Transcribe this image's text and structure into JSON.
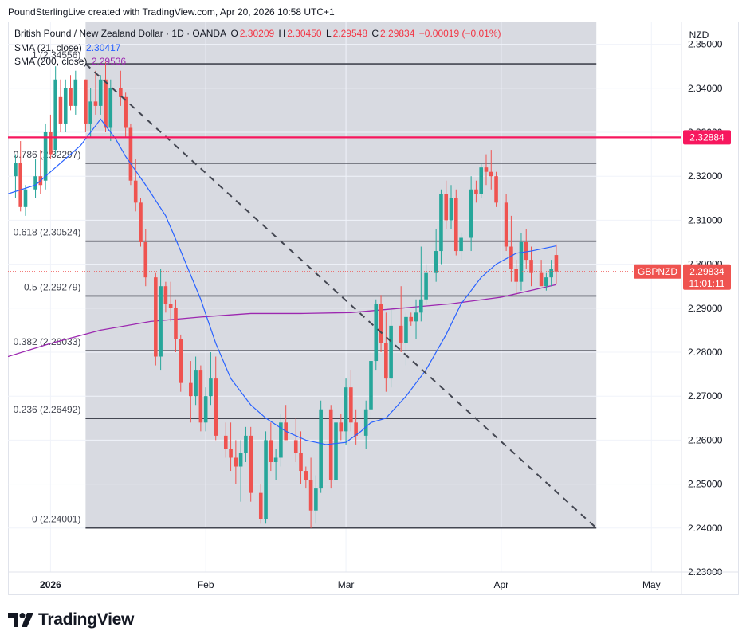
{
  "header": {
    "text": "PoundSterlingLive created with TradingView.com, Apr 20, 2026 10:58 UTC+1"
  },
  "legend": {
    "symbol": "British Pound / New Zealand Dollar · 1D · OANDA",
    "o_label": "O",
    "o_value": "2.30209",
    "h_label": "H",
    "h_value": "2.30450",
    "l_label": "L",
    "l_value": "2.29548",
    "c_label": "C",
    "c_value": "2.29834",
    "change": "−0.00019 (−0.01%)",
    "sma21_label": "SMA (21, close)",
    "sma21_value": "2.30417",
    "sma200_label": "SMA (200, close)",
    "sma200_value": "2.29536"
  },
  "currency_button": "NZD",
  "price_tag": {
    "symbol": "GBPNZD",
    "price": "2.29834",
    "countdown": "11:01:11"
  },
  "level_tag": "2.32884",
  "brand": "TradingView",
  "colors": {
    "up": "#26a69a",
    "down": "#ef5350",
    "sma21": "#2962ff",
    "sma200": "#9c27b0",
    "level": "#f7175e"
  },
  "chart_data": {
    "type": "candlestick",
    "symbol": "GBPNZD",
    "timeframe": "1D",
    "ylim": [
      2.23,
      2.355
    ],
    "y_ticks": [
      "2.23000",
      "2.24000",
      "2.25000",
      "2.26000",
      "2.27000",
      "2.28000",
      "2.29000",
      "2.30000",
      "2.31000",
      "2.32000",
      "2.33000",
      "2.34000",
      "2.35000"
    ],
    "x_ticks": [
      {
        "label": "2026",
        "day": 0,
        "bold": true
      },
      {
        "label": "Feb",
        "day": 31
      },
      {
        "label": "Mar",
        "day": 59
      },
      {
        "label": "Apr",
        "day": 90
      },
      {
        "label": "May",
        "day": 120
      }
    ],
    "x_range_days": [
      -8.5,
      126
    ],
    "candles": [
      [
        -7,
        2.32,
        2.325,
        2.315,
        2.323
      ],
      [
        -6,
        2.323,
        2.328,
        2.312,
        2.313
      ],
      [
        -5,
        2.313,
        2.318,
        2.311,
        2.317
      ],
      [
        -3,
        2.317,
        2.324,
        2.315,
        2.32
      ],
      [
        -2,
        2.32,
        2.326,
        2.316,
        2.318
      ],
      [
        -1,
        2.319,
        2.332,
        2.317,
        2.33
      ],
      [
        0,
        2.33,
        2.334,
        2.324,
        2.325
      ],
      [
        1,
        2.326,
        2.345,
        2.325,
        2.342
      ],
      [
        2,
        2.338,
        2.342,
        2.33,
        2.332
      ],
      [
        3,
        2.332,
        2.342,
        2.33,
        2.34
      ],
      [
        4,
        2.34,
        2.343,
        2.335,
        2.336
      ],
      [
        5,
        2.336,
        2.344,
        2.334,
        2.342
      ],
      [
        7,
        2.342,
        2.342,
        2.33,
        2.332
      ],
      [
        8,
        2.332,
        2.34,
        2.329,
        2.337
      ],
      [
        9,
        2.337,
        2.344,
        2.334,
        2.336
      ],
      [
        10,
        2.336,
        2.343,
        2.334,
        2.342
      ],
      [
        11,
        2.342,
        2.346,
        2.33,
        2.331
      ],
      [
        12,
        2.331,
        2.342,
        2.328,
        2.34
      ],
      [
        14,
        2.34,
        2.344,
        2.336,
        2.338
      ],
      [
        15,
        2.338,
        2.339,
        2.329,
        2.331
      ],
      [
        16,
        2.331,
        2.332,
        2.318,
        2.319
      ],
      [
        17,
        2.319,
        2.324,
        2.312,
        2.314
      ],
      [
        18,
        2.314,
        2.315,
        2.304,
        2.305
      ],
      [
        19,
        2.305,
        2.308,
        2.295,
        2.297
      ],
      [
        21,
        2.297,
        2.298,
        2.277,
        2.279
      ],
      [
        22,
        2.279,
        2.299,
        2.276,
        2.295
      ],
      [
        23,
        2.295,
        2.296,
        2.289,
        2.291
      ],
      [
        24,
        2.291,
        2.296,
        2.287,
        2.29
      ],
      [
        25,
        2.29,
        2.292,
        2.28,
        2.283
      ],
      [
        26,
        2.283,
        2.284,
        2.271,
        2.273
      ],
      [
        28,
        2.273,
        2.278,
        2.264,
        2.27
      ],
      [
        29,
        2.27,
        2.279,
        2.268,
        2.276
      ],
      [
        30,
        2.276,
        2.277,
        2.262,
        2.264
      ],
      [
        31,
        2.264,
        2.272,
        2.262,
        2.27
      ],
      [
        32,
        2.27,
        2.28,
        2.268,
        2.274
      ],
      [
        33,
        2.274,
        2.279,
        2.26,
        2.261
      ],
      [
        35,
        2.261,
        2.264,
        2.256,
        2.258
      ],
      [
        36,
        2.258,
        2.264,
        2.253,
        2.256
      ],
      [
        37,
        2.256,
        2.26,
        2.25,
        2.254
      ],
      [
        38,
        2.254,
        2.26,
        2.246,
        2.257
      ],
      [
        39,
        2.257,
        2.263,
        2.255,
        2.261
      ],
      [
        40,
        2.261,
        2.263,
        2.246,
        2.248
      ],
      [
        42,
        2.248,
        2.25,
        2.241,
        2.242
      ],
      [
        43,
        2.242,
        2.262,
        2.241,
        2.26
      ],
      [
        44,
        2.26,
        2.264,
        2.253,
        2.255
      ],
      [
        45,
        2.255,
        2.258,
        2.251,
        2.256
      ],
      [
        46,
        2.256,
        2.266,
        2.254,
        2.264
      ],
      [
        47,
        2.264,
        2.268,
        2.26,
        2.26
      ],
      [
        49,
        2.26,
        2.265,
        2.255,
        2.257
      ],
      [
        50,
        2.257,
        2.262,
        2.25,
        2.253
      ],
      [
        51,
        2.253,
        2.254,
        2.249,
        2.251
      ],
      [
        52,
        2.251,
        2.256,
        2.24,
        2.244
      ],
      [
        53,
        2.244,
        2.252,
        2.241,
        2.249
      ],
      [
        54,
        2.249,
        2.269,
        2.248,
        2.267
      ],
      [
        56,
        2.267,
        2.268,
        2.249,
        2.251
      ],
      [
        57,
        2.251,
        2.265,
        2.249,
        2.264
      ],
      [
        58,
        2.264,
        2.266,
        2.26,
        2.262
      ],
      [
        59,
        2.262,
        2.274,
        2.259,
        2.272
      ],
      [
        60,
        2.272,
        2.276,
        2.262,
        2.264
      ],
      [
        61,
        2.264,
        2.267,
        2.259,
        2.261
      ],
      [
        63,
        2.261,
        2.269,
        2.258,
        2.267
      ],
      [
        64,
        2.267,
        2.28,
        2.265,
        2.278
      ],
      [
        65,
        2.278,
        2.292,
        2.276,
        2.291
      ],
      [
        66,
        2.291,
        2.293,
        2.28,
        2.282
      ],
      [
        67,
        2.282,
        2.289,
        2.271,
        2.274
      ],
      [
        68,
        2.274,
        2.29,
        2.272,
        2.286
      ],
      [
        70,
        2.286,
        2.295,
        2.28,
        2.282
      ],
      [
        71,
        2.282,
        2.289,
        2.277,
        2.288
      ],
      [
        72,
        2.288,
        2.289,
        2.286,
        2.287
      ],
      [
        73,
        2.287,
        2.292,
        2.283,
        2.289
      ],
      [
        74,
        2.289,
        2.304,
        2.287,
        2.292
      ],
      [
        75,
        2.292,
        2.3,
        2.291,
        2.298
      ],
      [
        77,
        2.298,
        2.308,
        2.296,
        2.303
      ],
      [
        78,
        2.303,
        2.317,
        2.3,
        2.316
      ],
      [
        79,
        2.316,
        2.319,
        2.308,
        2.31
      ],
      [
        80,
        2.31,
        2.318,
        2.308,
        2.315
      ],
      [
        81,
        2.315,
        2.317,
        2.302,
        2.303
      ],
      [
        82,
        2.303,
        2.307,
        2.301,
        2.306
      ],
      [
        84,
        2.306,
        2.32,
        2.303,
        2.317
      ],
      [
        85,
        2.317,
        2.319,
        2.314,
        2.316
      ],
      [
        86,
        2.316,
        2.323,
        2.315,
        2.322
      ],
      [
        87,
        2.322,
        2.325,
        2.318,
        2.321
      ],
      [
        88,
        2.321,
        2.326,
        2.317,
        2.32
      ],
      [
        89,
        2.32,
        2.321,
        2.313,
        2.314
      ],
      [
        91,
        2.314,
        2.316,
        2.303,
        2.304
      ],
      [
        92,
        2.304,
        2.311,
        2.296,
        2.299
      ],
      [
        93,
        2.299,
        2.301,
        2.293,
        2.296
      ],
      [
        94,
        2.296,
        2.307,
        2.294,
        2.305
      ],
      [
        95,
        2.305,
        2.308,
        2.299,
        2.301
      ],
      [
        96,
        2.301,
        2.304,
        2.295,
        2.298
      ],
      [
        98,
        2.298,
        2.301,
        2.296,
        2.295
      ],
      [
        99,
        2.295,
        2.298,
        2.294,
        2.297
      ],
      [
        100,
        2.297,
        2.301,
        2.295,
        2.299
      ],
      [
        101,
        2.30209,
        2.3045,
        2.29548,
        2.29834
      ]
    ],
    "sma21": [
      [
        -8.5,
        2.316
      ],
      [
        -3,
        2.318
      ],
      [
        0,
        2.321
      ],
      [
        6,
        2.327
      ],
      [
        10,
        2.333
      ],
      [
        13,
        2.3285
      ],
      [
        15,
        2.3245
      ],
      [
        19,
        2.318
      ],
      [
        23,
        2.311
      ],
      [
        26,
        2.303
      ],
      [
        30,
        2.292
      ],
      [
        33,
        2.282
      ],
      [
        36,
        2.274
      ],
      [
        40,
        2.268
      ],
      [
        43,
        2.265
      ],
      [
        47,
        2.262
      ],
      [
        51,
        2.26
      ],
      [
        55,
        2.259
      ],
      [
        59,
        2.2595
      ],
      [
        62,
        2.262
      ],
      [
        64,
        2.264
      ],
      [
        67,
        2.265
      ],
      [
        71,
        2.27
      ],
      [
        75,
        2.276
      ],
      [
        79,
        2.284
      ],
      [
        82,
        2.291
      ],
      [
        86,
        2.297
      ],
      [
        89,
        2.3
      ],
      [
        93,
        2.3025
      ],
      [
        96,
        2.303
      ],
      [
        101,
        2.30417
      ]
    ],
    "sma200": [
      [
        -8.5,
        2.279
      ],
      [
        0,
        2.282
      ],
      [
        10,
        2.285
      ],
      [
        20,
        2.287
      ],
      [
        30,
        2.288
      ],
      [
        40,
        2.2888
      ],
      [
        50,
        2.2888
      ],
      [
        60,
        2.289
      ],
      [
        70,
        2.29
      ],
      [
        80,
        2.291
      ],
      [
        90,
        2.2925
      ],
      [
        95,
        2.2938
      ],
      [
        101,
        2.29536
      ]
    ],
    "fib_levels": [
      {
        "ratio": "1",
        "value": 2.34556,
        "label": "1 (2.34556)"
      },
      {
        "ratio": "0.786",
        "value": 2.32297,
        "label": "0.786 (2.32297)"
      },
      {
        "ratio": "0.618",
        "value": 2.30524,
        "label": "0.618 (2.30524)"
      },
      {
        "ratio": "0.5",
        "value": 2.29279,
        "label": "0.5 (2.29279)"
      },
      {
        "ratio": "0.382",
        "value": 2.28033,
        "label": "0.382 (2.28033)"
      },
      {
        "ratio": "0.236",
        "value": 2.26492,
        "label": "0.236 (2.26492)"
      },
      {
        "ratio": "0",
        "value": 2.24001,
        "label": "0 (2.24001)"
      }
    ],
    "fib_range_days": [
      7,
      109
    ],
    "trendline": [
      [
        7,
        2.34556
      ],
      [
        109,
        2.24001
      ]
    ],
    "horizontal_level": 2.32884,
    "last_price": 2.29834
  }
}
